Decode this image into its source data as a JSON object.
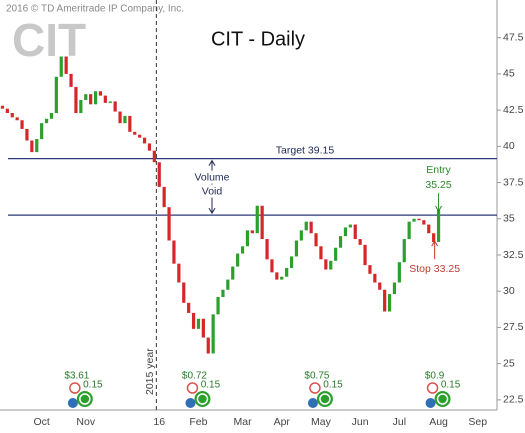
{
  "chart_data": {
    "type": "candlestick",
    "title": "CIT - Daily",
    "copyright": "2016 © TD Ameritrade IP Company, Inc.",
    "logo": "CIT",
    "year_marker": "2015 year",
    "categories": [
      null,
      null,
      null,
      null,
      null,
      null,
      null,
      null,
      "Oct",
      null,
      null,
      null,
      null,
      null,
      null,
      null,
      null,
      "Nov",
      null,
      null,
      null,
      null,
      null,
      null,
      null,
      null,
      null,
      null,
      null,
      null,
      null,
      null,
      "16",
      null,
      null,
      null,
      null,
      null,
      null,
      null,
      "Feb",
      null,
      null,
      null,
      null,
      null,
      null,
      null,
      null,
      "Mar",
      null,
      null,
      null,
      null,
      null,
      null,
      null,
      "Apr",
      null,
      null,
      null,
      null,
      null,
      null,
      null,
      "May",
      null,
      null,
      null,
      null,
      null,
      null,
      null,
      "Jun",
      null,
      null,
      null,
      null,
      null,
      null,
      null,
      "Jul",
      null,
      null,
      null,
      null,
      null,
      null,
      null,
      "Aug",
      null,
      null,
      null,
      null,
      null,
      null,
      null,
      "Sep"
    ],
    "open": [
      42.8,
      42.6,
      42.3,
      42.0,
      41.8,
      41.2,
      40.4,
      39.6,
      40.5,
      41.6,
      41.9,
      42.3,
      44.8,
      46.2,
      45.0,
      44.1,
      42.3,
      43.2,
      43.6,
      42.9,
      43.8,
      43.5,
      43.0,
      43.1,
      42.4,
      41.6,
      42.1,
      41.0,
      40.8,
      40.6,
      40.2,
      39.7,
      38.9,
      37.2,
      35.8,
      33.5,
      31.9,
      30.6,
      29.2,
      28.5,
      27.4,
      28.1,
      26.8,
      25.7,
      28.4,
      29.6,
      30.1,
      30.8,
      31.7,
      32.6,
      33.1,
      34.2,
      34.0,
      35.9,
      33.6,
      32.2,
      31.3,
      30.8,
      31.0,
      31.6,
      32.4,
      33.5,
      34.2,
      34.8,
      34.0,
      33.1,
      32.2,
      31.5,
      32.1,
      33.0,
      33.8,
      34.4,
      34.6,
      33.6,
      33.2,
      31.8,
      31.2,
      30.6,
      30.1,
      28.6,
      29.8,
      30.6,
      32.0,
      33.6,
      34.8,
      35.0,
      34.9,
      34.6,
      34.0,
      33.4,
      null,
      null,
      null,
      null,
      null,
      null,
      null,
      null
    ],
    "close": [
      42.6,
      42.3,
      42.0,
      41.8,
      41.2,
      40.4,
      39.6,
      40.5,
      41.6,
      41.9,
      42.3,
      44.8,
      46.2,
      45.0,
      44.1,
      42.3,
      43.2,
      43.6,
      42.9,
      43.8,
      43.5,
      43.0,
      43.1,
      42.4,
      41.6,
      42.1,
      41.0,
      40.8,
      40.6,
      40.2,
      39.7,
      38.9,
      37.2,
      35.8,
      33.5,
      31.9,
      30.6,
      29.2,
      28.5,
      27.4,
      28.1,
      26.8,
      25.7,
      28.4,
      29.6,
      30.1,
      30.8,
      31.7,
      32.6,
      33.1,
      34.2,
      34.0,
      35.9,
      33.6,
      32.2,
      31.3,
      30.8,
      31.0,
      31.6,
      32.4,
      33.5,
      34.2,
      34.8,
      34.0,
      33.1,
      32.2,
      31.5,
      32.1,
      33.0,
      33.8,
      34.4,
      34.6,
      33.6,
      33.2,
      31.8,
      31.2,
      30.6,
      30.1,
      28.6,
      29.8,
      30.6,
      32.0,
      33.6,
      34.8,
      35.0,
      34.9,
      34.6,
      34.0,
      33.4,
      35.6,
      null,
      null,
      null,
      null,
      null,
      null,
      null,
      null
    ],
    "up_color": "#2ca02c",
    "down_color": "#d62728",
    "ylim": [
      21.8,
      50.1
    ],
    "yticks": [
      22.5,
      25,
      27.5,
      30,
      32.5,
      35,
      37.5,
      40,
      42.5,
      45,
      47.5
    ],
    "levels": [
      {
        "value": 39.15,
        "label": "Target 39.15",
        "color": "#2d3a7a"
      },
      {
        "value": 35.25,
        "color": "#2d3a7a"
      }
    ],
    "void_label": [
      "Volume",
      "Void"
    ],
    "entry": {
      "lines": [
        "Entry",
        "35.25"
      ],
      "color": "#2a8a2a"
    },
    "stop": {
      "label": "Stop 33.25",
      "color": "#c0392b"
    },
    "events": [
      {
        "index": 16,
        "dividend": "$3.61",
        "other": "0.15"
      },
      {
        "index": 40,
        "dividend": "$0.72",
        "other": "0.15"
      },
      {
        "index": 65,
        "dividend": "$0.75",
        "other": "0.15"
      },
      {
        "index": 89,
        "dividend": "$0.9",
        "other": "0.15"
      }
    ]
  }
}
